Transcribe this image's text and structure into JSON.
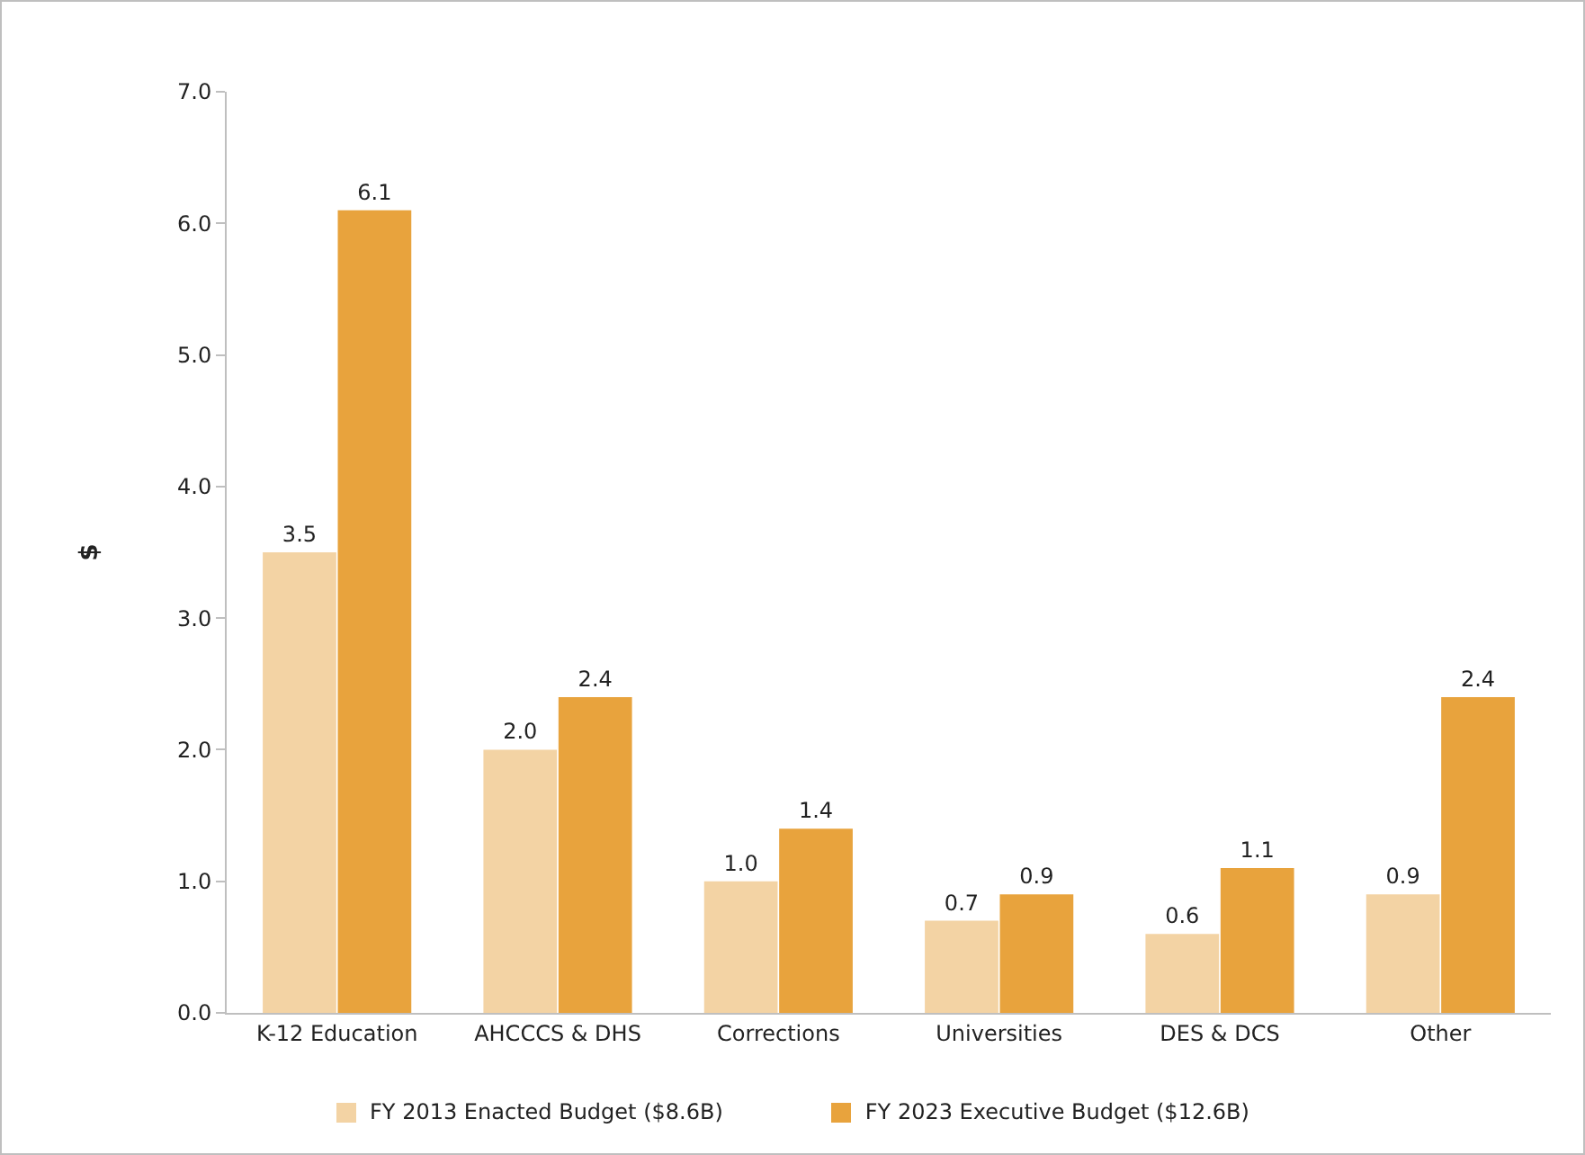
{
  "chart_data": {
    "type": "bar",
    "ylabel": "$",
    "categories": [
      "K-12 Education",
      "AHCCCS & DHS",
      "Corrections",
      "Universities",
      "DES & DCS",
      "Other"
    ],
    "series": [
      {
        "name": "FY 2013 Enacted Budget ($8.6B)",
        "color": "#f3d3a4",
        "values": [
          3.5,
          2.0,
          1.0,
          0.7,
          0.6,
          0.9
        ],
        "value_labels": [
          "3.5",
          "2.0",
          "1.0",
          "0.7",
          "0.6",
          "0.9"
        ]
      },
      {
        "name": "FY 2023 Executive Budget ($12.6B)",
        "color": "#e8a33d",
        "values": [
          6.1,
          2.4,
          1.4,
          0.9,
          1.1,
          2.4
        ],
        "value_labels": [
          "6.1",
          "2.4",
          "1.4",
          "0.9",
          "1.1",
          "2.4"
        ]
      }
    ],
    "ylim": [
      0,
      7
    ],
    "yticks": [
      {
        "value": 0,
        "label": "0.0"
      },
      {
        "value": 1,
        "label": "1.0"
      },
      {
        "value": 2,
        "label": "2.0"
      },
      {
        "value": 3,
        "label": "3.0"
      },
      {
        "value": 4,
        "label": "4.0"
      },
      {
        "value": 5,
        "label": "5.0"
      },
      {
        "value": 6,
        "label": "6.0"
      },
      {
        "value": 7,
        "label": "7.0"
      }
    ],
    "grid": false,
    "legend": "bottom"
  }
}
